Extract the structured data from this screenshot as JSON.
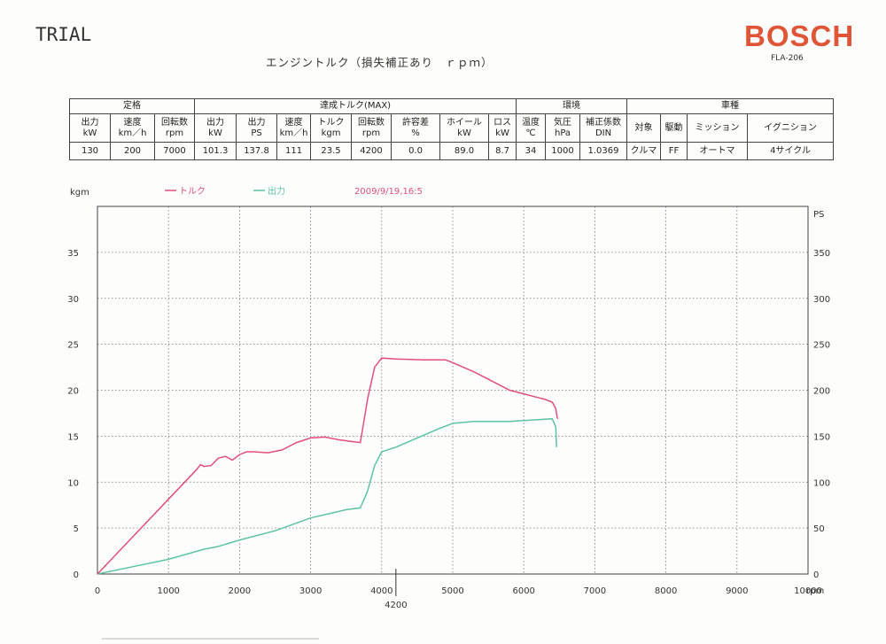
{
  "header": {
    "trial": "TRIAL",
    "title": "エンジントルク（損失補正あり　ｒｐｍ）",
    "brand": "BOSCH",
    "model": "FLA-206"
  },
  "table": {
    "groups": [
      "定格",
      "達成トルク(MAX)",
      "環境",
      "車種"
    ],
    "headers": [
      [
        "出力",
        "kW"
      ],
      [
        "速度",
        "km／h"
      ],
      [
        "回転数",
        "rpm"
      ],
      [
        "出力",
        "kW"
      ],
      [
        "出力",
        "PS"
      ],
      [
        "速度",
        "km／h"
      ],
      [
        "トルク",
        "kgm"
      ],
      [
        "回転数",
        "rpm"
      ],
      [
        "許容差",
        "%"
      ],
      [
        "ホイール",
        "kW"
      ],
      [
        "ロス",
        "kW"
      ],
      [
        "温度",
        "℃"
      ],
      [
        "気圧",
        "hPa"
      ],
      [
        "補正係数",
        "DIN"
      ],
      [
        "対象",
        ""
      ],
      [
        "駆動",
        ""
      ],
      [
        "ミッション",
        ""
      ],
      [
        "イグニション",
        ""
      ]
    ],
    "values": [
      "130",
      "200",
      "7000",
      "101.3",
      "137.8",
      "111",
      "23.5",
      "4200",
      "0.0",
      "89.0",
      "8.7",
      "34",
      "1000",
      "1.0369",
      "クルマ",
      "FF",
      "オートマ",
      "4サイクル"
    ]
  },
  "chart_data": {
    "type": "line",
    "legend": [
      "トルク",
      "出力"
    ],
    "timestamp": "2009/9/19,16:5",
    "colors": {
      "torque": "#e0507a",
      "power": "#5cc4a4",
      "grid": "#777777"
    },
    "x_unit": "rpm",
    "x_ticks": [
      0,
      1000,
      2000,
      3000,
      4000,
      5000,
      6000,
      7000,
      8000,
      9000,
      10000
    ],
    "x_lim": [
      0,
      10000
    ],
    "x_marker": "4200",
    "x_marker_value": 4200,
    "y_left_unit": "kgm",
    "y_left_ticks": [
      0,
      5,
      10,
      15,
      20,
      25,
      30,
      35
    ],
    "y_left_lim": [
      0,
      40
    ],
    "y_right_unit": "PS",
    "y_right_ticks": [
      0,
      50,
      100,
      150,
      200,
      250,
      300,
      350
    ],
    "y_right_lim": [
      0,
      400
    ],
    "grid": true,
    "series": [
      {
        "name": "トルク",
        "axis": "left",
        "points": [
          [
            0,
            0
          ],
          [
            1400,
            11.4
          ],
          [
            1450,
            11.9
          ],
          [
            1500,
            11.7
          ],
          [
            1600,
            11.8
          ],
          [
            1700,
            12.6
          ],
          [
            1800,
            12.8
          ],
          [
            1900,
            12.4
          ],
          [
            2000,
            13.0
          ],
          [
            2100,
            13.3
          ],
          [
            2200,
            13.3
          ],
          [
            2400,
            13.2
          ],
          [
            2600,
            13.5
          ],
          [
            2800,
            14.3
          ],
          [
            3000,
            14.8
          ],
          [
            3200,
            14.9
          ],
          [
            3400,
            14.6
          ],
          [
            3600,
            14.4
          ],
          [
            3700,
            14.3
          ],
          [
            3800,
            19.0
          ],
          [
            3900,
            22.5
          ],
          [
            4000,
            23.5
          ],
          [
            4200,
            23.4
          ],
          [
            4600,
            23.3
          ],
          [
            4900,
            23.3
          ],
          [
            5000,
            23.0
          ],
          [
            5300,
            22.0
          ],
          [
            5600,
            20.8
          ],
          [
            5800,
            20.0
          ],
          [
            6000,
            19.6
          ],
          [
            6200,
            19.2
          ],
          [
            6300,
            19.0
          ],
          [
            6400,
            18.7
          ],
          [
            6450,
            18.0
          ],
          [
            6470,
            17.0
          ],
          [
            6480,
            16.9
          ]
        ]
      },
      {
        "name": "出力",
        "axis": "right",
        "points": [
          [
            0,
            0
          ],
          [
            500,
            8
          ],
          [
            1000,
            16
          ],
          [
            1500,
            27
          ],
          [
            1700,
            30
          ],
          [
            2000,
            37
          ],
          [
            2500,
            47
          ],
          [
            3000,
            61
          ],
          [
            3500,
            70
          ],
          [
            3700,
            72
          ],
          [
            3800,
            90
          ],
          [
            3900,
            118
          ],
          [
            4000,
            133
          ],
          [
            4200,
            138
          ],
          [
            4500,
            148
          ],
          [
            4800,
            158
          ],
          [
            5000,
            164
          ],
          [
            5300,
            166
          ],
          [
            5600,
            166
          ],
          [
            5800,
            166
          ],
          [
            6000,
            167
          ],
          [
            6200,
            168
          ],
          [
            6400,
            169
          ],
          [
            6450,
            160
          ],
          [
            6460,
            138
          ]
        ]
      }
    ]
  }
}
